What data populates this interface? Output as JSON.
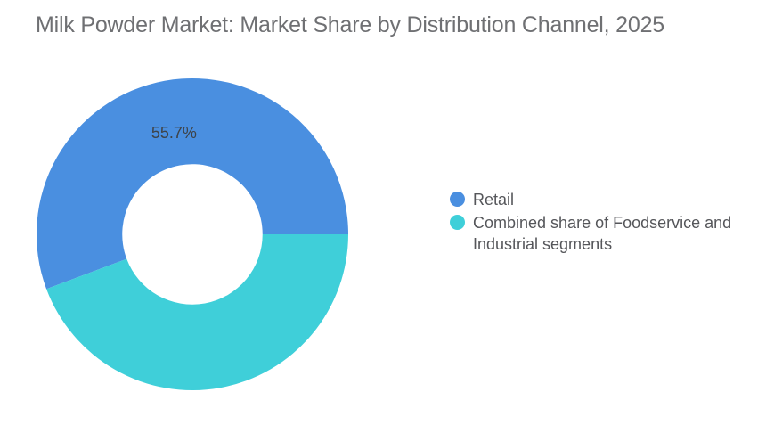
{
  "title": "Milk Powder Market: Market Share by Distribution Channel, 2025",
  "chart_data": {
    "type": "pie",
    "subtype": "donut",
    "title": "Milk Powder Market: Market Share by Distribution Channel, 2025",
    "start_angle_deg": 0,
    "direction": "counterclockwise",
    "inner_radius_ratio": 0.45,
    "legend_position": "right",
    "background_color": "#ffffff",
    "label_color": "#3e4348",
    "segments": [
      {
        "label": "Retail",
        "value": 55.7,
        "color": "#4a8fe0",
        "data_label": "55.7%"
      },
      {
        "label": "Combined share of Foodservice and Industrial segments",
        "value": 44.3,
        "color": "#3fcfd9",
        "data_label": null
      }
    ]
  }
}
